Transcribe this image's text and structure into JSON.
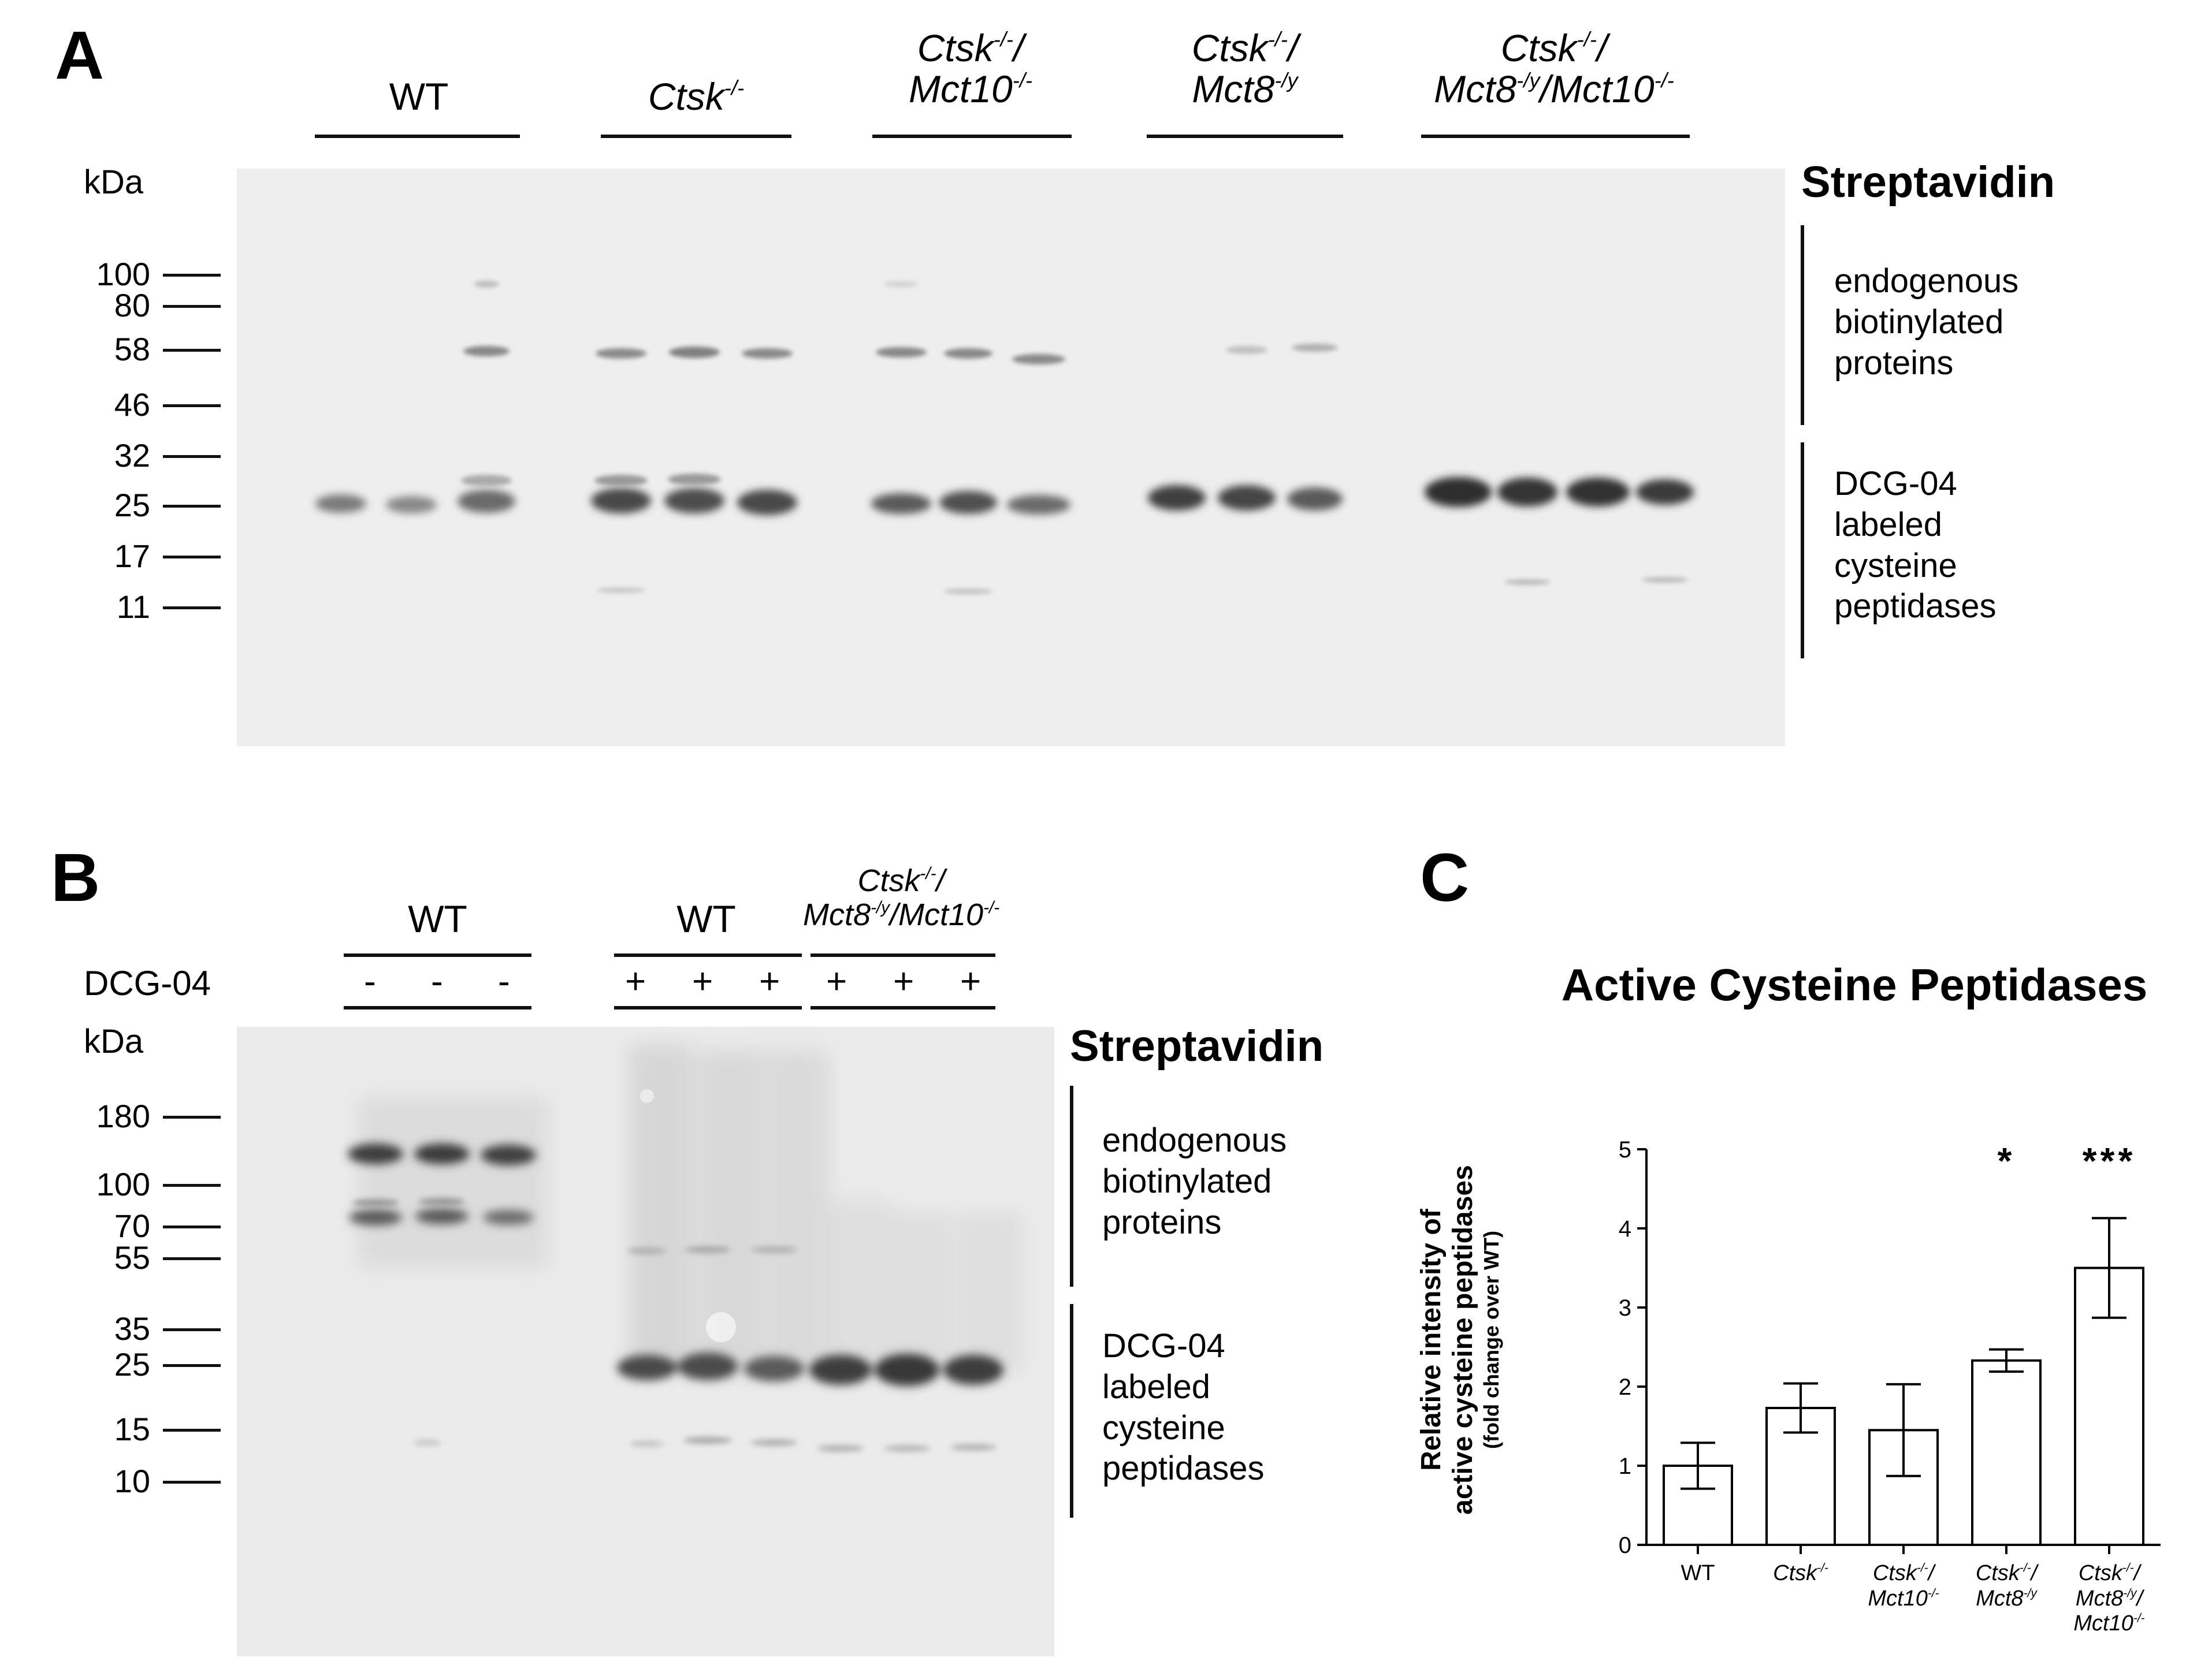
{
  "panel_a": {
    "letter": "A",
    "unit": "kDa",
    "markers": [
      "100",
      "80",
      "58",
      "46",
      "32",
      "25",
      "17",
      "11"
    ],
    "groups": [
      {
        "base": "WT"
      },
      {
        "base": "Ctsk",
        "sup": "-/-"
      },
      {
        "l1": "Ctsk",
        "l1sup": "-/-",
        "l1tail": "/",
        "l2": "Mct10",
        "l2sup": "-/-"
      },
      {
        "l1": "Ctsk",
        "l1sup": "-/-",
        "l1tail": "/",
        "l2": "Mct8",
        "l2sup": "-/y"
      },
      {
        "l1": "Ctsk",
        "l1sup": "-/-",
        "l1tail": "/",
        "l2a": "Mct8",
        "l2asup": "-/y",
        "l2b": "/Mct10",
        "l2bsup": "-/-"
      }
    ],
    "stain": "Streptavidin",
    "side_top": [
      "endogenous",
      "biotinylated",
      "proteins"
    ],
    "side_bottom": [
      "DCG-04",
      "labeled",
      "cysteine",
      "peptidases"
    ]
  },
  "panel_b": {
    "letter": "B",
    "unit": "kDa",
    "treatment_label": "DCG-04",
    "markers": [
      "180",
      "100",
      "70",
      "55",
      "35",
      "25",
      "15",
      "10"
    ],
    "groups": [
      "WT",
      "WT"
    ],
    "group3": {
      "l1": "Ctsk",
      "l1sup": "-/-",
      "l1tail": "/",
      "l2a": "Mct8",
      "l2asup": "-/y",
      "l2b": "/Mct10",
      "l2bsup": "-/-"
    },
    "signs": [
      "-",
      "-",
      "-",
      "+",
      "+",
      "+",
      "+",
      "+",
      "+"
    ],
    "stain": "Streptavidin",
    "side_top": [
      "endogenous",
      "biotinylated",
      "proteins"
    ],
    "side_bottom": [
      "DCG-04",
      "labeled",
      "cysteine",
      "peptidases"
    ]
  },
  "panel_c": {
    "letter": "C",
    "chart_data": {
      "type": "bar",
      "title": "Active Cysteine Peptidases",
      "ylabel": "Relative intensity of",
      "ylabel2": "active cysteine peptidases",
      "ylabel3": "(fold change over WT)",
      "ylim": [
        0,
        5
      ],
      "yticks": [
        "0",
        "1",
        "2",
        "3",
        "4",
        "5"
      ],
      "categories": [
        {
          "lines": [
            {
              "t": "WT"
            }
          ]
        },
        {
          "lines": [
            {
              "t": "Ctsk",
              "s": "-/-"
            }
          ]
        },
        {
          "lines": [
            {
              "t": "Ctsk",
              "s": "-/-",
              "tail": "/"
            },
            {
              "t": "Mct10",
              "s": "-/-"
            }
          ]
        },
        {
          "lines": [
            {
              "t": "Ctsk",
              "s": "-/-",
              "tail": "/"
            },
            {
              "t": "Mct8",
              "s": "-/y"
            }
          ]
        },
        {
          "lines": [
            {
              "t": "Ctsk",
              "s": "-/-",
              "tail": "/"
            },
            {
              "t": "Mct8",
              "s": "-/y",
              "tail": "/"
            },
            {
              "t": "Mct10",
              "s": "-/-"
            }
          ]
        }
      ],
      "values": [
        1.0,
        1.73,
        1.45,
        2.33,
        3.5
      ],
      "errors": [
        0.29,
        0.31,
        0.58,
        0.14,
        0.63
      ],
      "significance": [
        "",
        "",
        "",
        "*",
        "***"
      ]
    }
  }
}
